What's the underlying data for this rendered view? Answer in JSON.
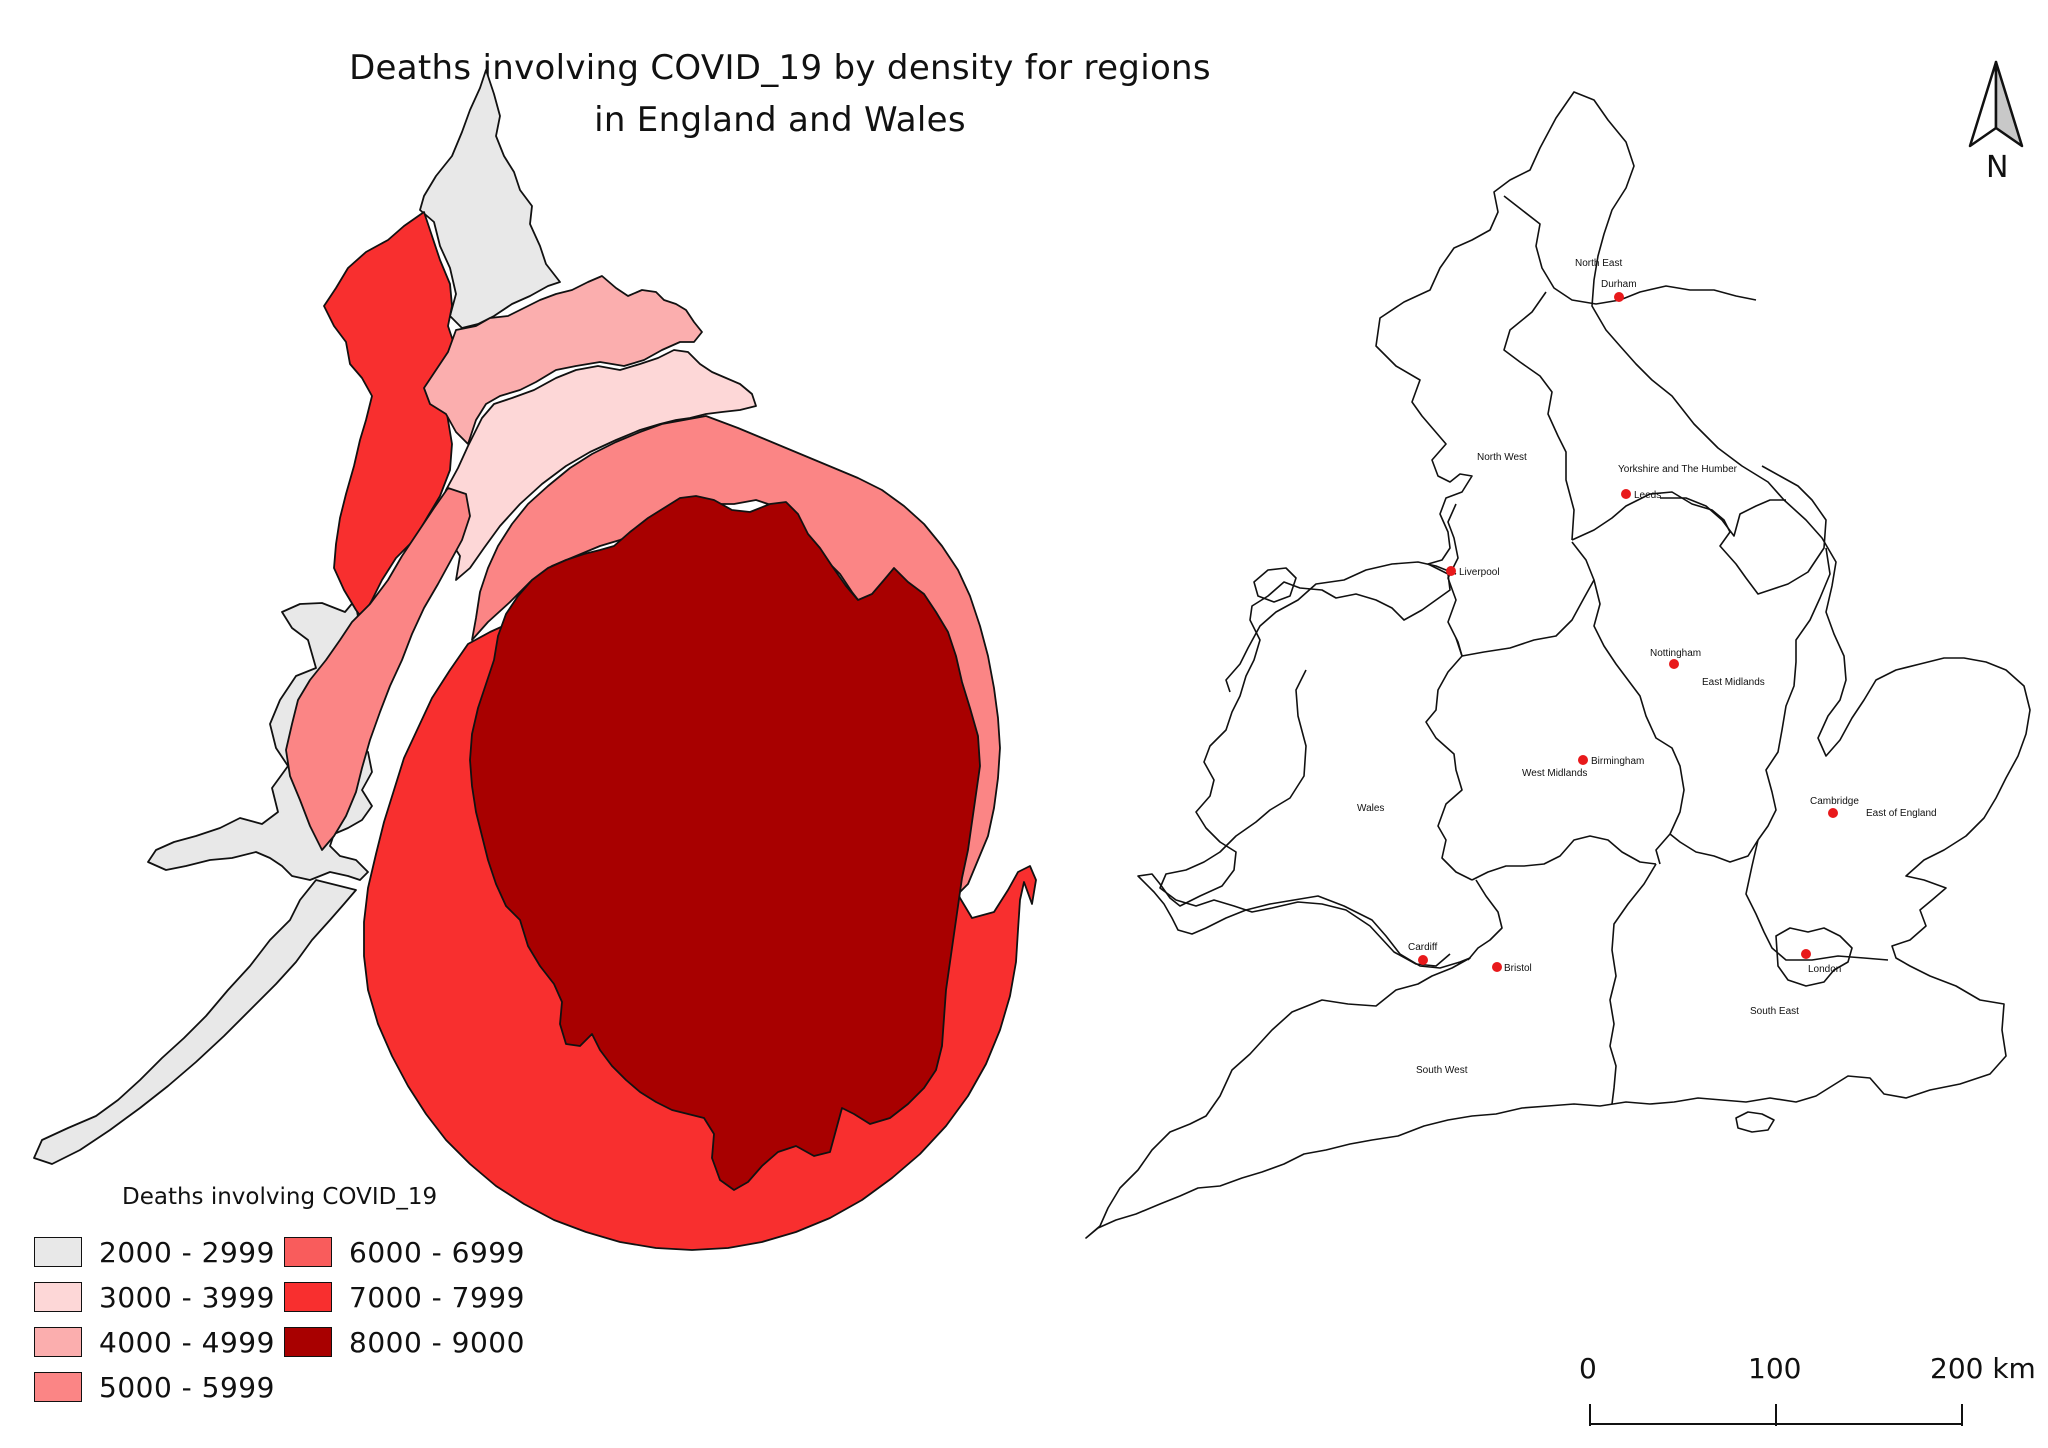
{
  "map": {
    "title_line1": "Deaths involving COVID_19 by density for regions",
    "title_line2": "in England and Wales",
    "legend": {
      "title": "Deaths involving COVID_19",
      "classes": [
        {
          "label": "2000 - 2999",
          "color": "#e8e8e8"
        },
        {
          "label": "3000 - 3999",
          "color": "#fdd7d7"
        },
        {
          "label": "4000 - 4999",
          "color": "#fbaeae"
        },
        {
          "label": "5000 - 5999",
          "color": "#fb8585"
        },
        {
          "label": "6000 - 6999",
          "color": "#f95c5c"
        },
        {
          "label": "7000 - 7999",
          "color": "#f82f2f"
        },
        {
          "label": "8000 - 9000",
          "color": "#a80000"
        }
      ]
    },
    "north_arrow": "N",
    "scale_bar": {
      "labels": [
        "0",
        "100",
        "200 km"
      ]
    },
    "cartogram_regions": [
      {
        "name": "North East",
        "class": "2000 - 2999"
      },
      {
        "name": "Wales",
        "class": "2000 - 2999"
      },
      {
        "name": "North West",
        "class": "7000 - 7999"
      },
      {
        "name": "Yorkshire and The Humber",
        "class": "4000 - 4999"
      },
      {
        "name": "West Midlands",
        "class": "3000 - 3999"
      },
      {
        "name": "East Midlands",
        "class": "5000 - 5999"
      },
      {
        "name": "South West",
        "class": "5000 - 5999"
      },
      {
        "name": "South East",
        "class": "7000 - 7999"
      },
      {
        "name": "London",
        "class": "8000 - 9000"
      }
    ],
    "reference_map": {
      "region_labels": [
        "North East",
        "North West",
        "Yorkshire and The Humber",
        "East Midlands",
        "West Midlands",
        "Wales",
        "East of England",
        "South West",
        "South East"
      ],
      "cities": [
        "Durham",
        "Leeds",
        "Liverpool",
        "Nottingham",
        "Birmingham",
        "Cambridge",
        "Cardiff",
        "Bristol",
        "London"
      ],
      "city_color": "#e8191b"
    }
  }
}
